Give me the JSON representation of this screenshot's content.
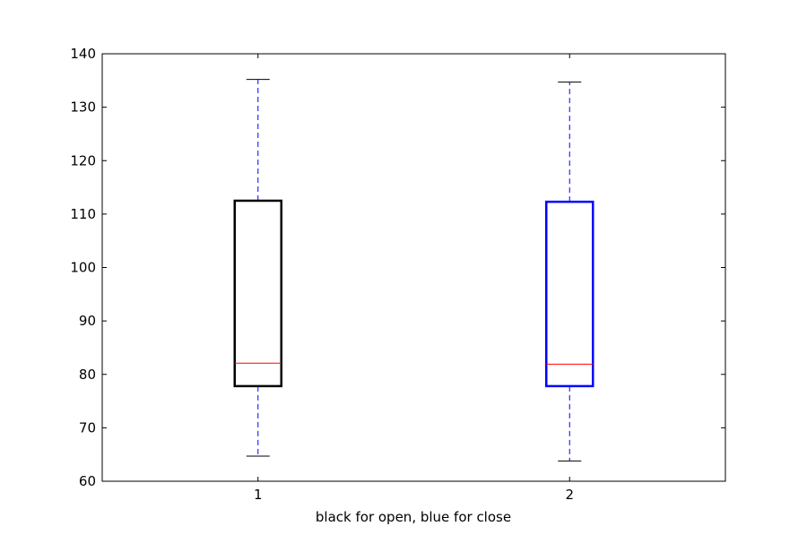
{
  "chart_data": {
    "type": "box",
    "title": "",
    "xlabel": "black for open, blue for close",
    "ylabel": "",
    "ylim": [
      60,
      140
    ],
    "yticks": [
      "60",
      "70",
      "80",
      "90",
      "100",
      "110",
      "120",
      "130",
      "140"
    ],
    "grid": false,
    "series": [
      {
        "category": "1",
        "whisker_low": 64.7,
        "q1": 77.8,
        "median": 82.1,
        "q3": 112.5,
        "whisker_high": 135.2,
        "box_color": "#000000"
      },
      {
        "category": "2",
        "whisker_low": 63.8,
        "q1": 77.8,
        "median": 81.9,
        "q3": 112.3,
        "whisker_high": 134.7,
        "box_color": "#0000ff"
      }
    ],
    "colors": {
      "median": "#ff0000",
      "whisker": "#0000ff",
      "cap": "#000000",
      "axes": "#000000"
    }
  }
}
